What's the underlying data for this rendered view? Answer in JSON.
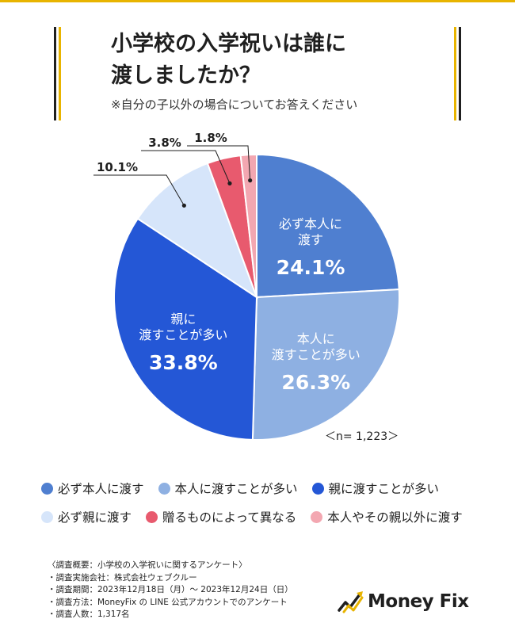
{
  "title": "小学校の入学祝いは誰に渡しましたか？",
  "title_line1": "小学校の入学祝いは誰に",
  "title_line2": "渡しましたか？",
  "subtitle": "※自分の子以外の場合についてお答えください",
  "chart_data": {
    "type": "pie",
    "title": "小学校の入学祝いは誰に渡しましたか？",
    "sample_note": "＜n= 1,223＞",
    "slices": [
      {
        "label": "必ず本人に渡す",
        "inside_lines": [
          "必ず本人に",
          "渡す"
        ],
        "value": 24.1,
        "value_text": "24.1%",
        "color": "#4f7fd0"
      },
      {
        "label": "本人に渡すことが多い",
        "inside_lines": [
          "本人に",
          "渡すことが多い"
        ],
        "value": 26.3,
        "value_text": "26.3%",
        "color": "#8eb0e2"
      },
      {
        "label": "親に渡すことが多い",
        "inside_lines": [
          "親に",
          "渡すことが多い"
        ],
        "value": 33.8,
        "value_text": "33.8%",
        "color": "#2457d6"
      },
      {
        "label": "必ず親に渡す",
        "inside_lines": [],
        "value": 10.1,
        "value_text": "10.1%",
        "color": "#d6e5fa"
      },
      {
        "label": "贈るものによって異なる",
        "inside_lines": [],
        "value": 3.8,
        "value_text": "3.8%",
        "color": "#e85a6e"
      },
      {
        "label": "本人やその親以外に渡す",
        "inside_lines": [],
        "value": 1.8,
        "value_text": "1.8%",
        "color": "#f3a7b1"
      }
    ]
  },
  "legend": [
    {
      "label": "必ず本人に渡す",
      "color": "#4f7fd0"
    },
    {
      "label": "本人に渡すことが多い",
      "color": "#8eb0e2"
    },
    {
      "label": "親に渡すことが多い",
      "color": "#2457d6"
    },
    {
      "label": "必ず親に渡す",
      "color": "#d6e5fa"
    },
    {
      "label": "贈るものによって異なる",
      "color": "#e85a6e"
    },
    {
      "label": "本人やその親以外に渡す",
      "color": "#f3a7b1"
    }
  ],
  "footnote": [
    "〈調査概要：小学校の入学祝いに関するアンケート〉",
    "・調査実施会社：株式会社ウェブクルー",
    "・調査期間：2023年12月18日（月）〜 2023年12月24日（日）",
    "・調査方法：MoneyFix の LINE 公式アカウントでのアンケート",
    "・調査人数：1,317名"
  ],
  "logo": {
    "text": "Money Fix",
    "accent": "#e8b400"
  }
}
